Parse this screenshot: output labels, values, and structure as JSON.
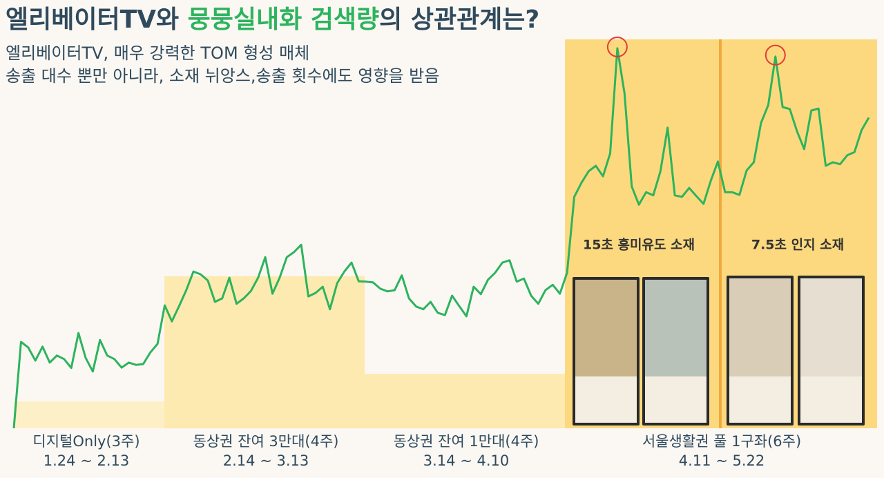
{
  "chart_data": {
    "type": "line",
    "title_parts": [
      "엘리베이터TV와 ",
      "뭉뭉실내화 검색량",
      "의 상관관계는?"
    ],
    "subtitle": [
      "엘리베이터TV, 매우 강력한 TOM 형성 매체",
      "송출 대수 뿐만 아니라, 소재 뉘앙스,송출 횟수에도 영향을 받음"
    ],
    "ylim": [
      0,
      100
    ],
    "series": [
      {
        "color": "#2db35d",
        "values": [
          0,
          22.2,
          20.8,
          17.4,
          21.0,
          16.9,
          18.7,
          17.8,
          15.5,
          24.5,
          18.1,
          14.6,
          22.7,
          18.7,
          17.8,
          15.6,
          16.9,
          16.3,
          16.5,
          19.5,
          21.7,
          31.6,
          27.5,
          31.4,
          35.5,
          40.3,
          39.6,
          38.0,
          32.5,
          33.4,
          38.7,
          32.0,
          33.4,
          35.3,
          38.7,
          44.0,
          34.6,
          38.7,
          44.0,
          45.3,
          47.2,
          33.9,
          34.8,
          36.4,
          30.6,
          37.3,
          40.3,
          42.6,
          37.8,
          37.7,
          37.5,
          35.9,
          35.2,
          35.5,
          39.3,
          33.4,
          31.3,
          30.6,
          32.5,
          29.7,
          29.1,
          34.1,
          31.4,
          28.8,
          36.4,
          34.5,
          38.2,
          40.0,
          42.6,
          43.2,
          37.7,
          38.5,
          34.1,
          32.0,
          35.5,
          36.9,
          34.6,
          40.0,
          59.5,
          63.1,
          66.1,
          67.5,
          64.8,
          70.7,
          97.7,
          86.1,
          62.2,
          57.5,
          60.7,
          59.9,
          66.1,
          77.3,
          59.9,
          59.5,
          61.8,
          59.7,
          57.7,
          63.6,
          68.6,
          60.7,
          60.7,
          60.0,
          66.3,
          68.4,
          78.5,
          83.1,
          95.6,
          82.6,
          82.1,
          76.4,
          71.8,
          81.7,
          82.2,
          67.5,
          68.4,
          67.9,
          70.2,
          71.0,
          76.7,
          79.9
        ]
      }
    ],
    "periods": [
      {
        "label": "디지털Only(3주)",
        "dates": "1.24 ~ 2.13",
        "level": 6.9,
        "color": "#fdf0c6"
      },
      {
        "label": "동상권 잔여 3만대(4주)",
        "dates": "2.14 ~ 3.13",
        "level": 39.1,
        "color": "#fdeab0"
      },
      {
        "label": "동상권 잔여 1만대(4주)",
        "dates": "3.14 ~ 4.10",
        "level": 14.0,
        "color": "#fdeab0"
      },
      {
        "label": "서울생활권 풀 1구좌(6주)",
        "dates": "4.11 ~ 5.22",
        "level": 100,
        "color": "#fcd97f"
      }
    ],
    "creatives": [
      "15초 흥미유도 소재",
      "7.5초 인지 소재"
    ]
  }
}
